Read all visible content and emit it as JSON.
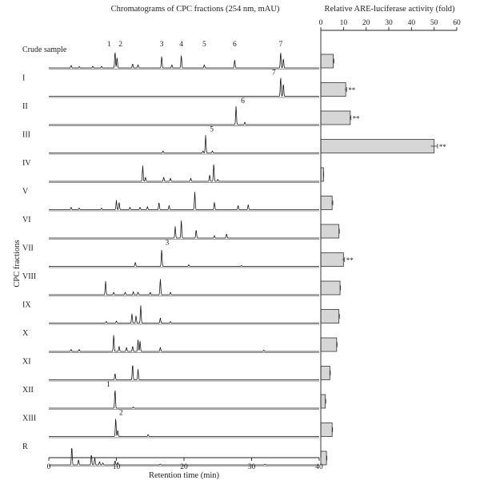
{
  "chart_data": {
    "type": "chromatogram-with-bars",
    "left_title": "Chromatograms of CPC fractions (254 nm, mAU)",
    "right_title": "Relative ARE-luciferase activity (fold)",
    "xlabel": "Retention time (min)",
    "ylabel": "CPC fractions",
    "x_ticks": [
      0,
      10,
      20,
      30,
      40
    ],
    "x_range": [
      0,
      40
    ],
    "bar_ticks": [
      0,
      10,
      20,
      30,
      40,
      50,
      60
    ],
    "bar_range": [
      0,
      60
    ],
    "rows": [
      {
        "label": "Crude sample",
        "fold": 5.5,
        "err": 0.3,
        "sig": "",
        "peaks": [
          [
            3.3,
            0.12
          ],
          [
            4.5,
            0.06
          ],
          [
            6.5,
            0.08
          ],
          [
            7.8,
            0.08
          ],
          [
            9.8,
            0.78
          ],
          [
            10.1,
            0.5
          ],
          [
            12.4,
            0.2
          ],
          [
            13.2,
            0.15
          ],
          [
            16.7,
            0.55
          ],
          [
            18.2,
            0.15
          ],
          [
            19.6,
            0.6
          ],
          [
            23.0,
            0.15
          ],
          [
            27.5,
            0.38
          ],
          [
            34.3,
            0.75
          ],
          [
            34.7,
            0.45
          ]
        ],
        "labels": [
          {
            "t": 8.9,
            "text": "1"
          },
          {
            "t": 10.6,
            "text": "2"
          },
          {
            "t": 16.7,
            "text": "3"
          },
          {
            "t": 19.6,
            "text": "4"
          },
          {
            "t": 23.0,
            "text": "5"
          },
          {
            "t": 27.5,
            "text": "6"
          },
          {
            "t": 34.3,
            "text": "7"
          }
        ]
      },
      {
        "label": "I",
        "fold": 11.0,
        "err": 0.4,
        "sig": "**",
        "peaks": [
          [
            34.3,
            0.92
          ],
          [
            34.7,
            0.6
          ]
        ],
        "labels": [
          {
            "t": 33.3,
            "text": "7"
          }
        ]
      },
      {
        "label": "II",
        "fold": 13.0,
        "err": 0.3,
        "sig": "**",
        "peaks": [
          [
            27.7,
            0.88
          ],
          [
            29.0,
            0.12
          ]
        ],
        "labels": [
          {
            "t": 28.7,
            "text": "6"
          }
        ]
      },
      {
        "label": "III",
        "fold": 50.0,
        "err": 1.5,
        "sig": "**",
        "peaks": [
          [
            16.9,
            0.1
          ],
          [
            22.8,
            0.1
          ],
          [
            23.2,
            0.85
          ],
          [
            24.2,
            0.1
          ]
        ],
        "labels": [
          {
            "t": 24.1,
            "text": "5"
          }
        ]
      },
      {
        "label": "IV",
        "fold": 1.2,
        "err": 0.1,
        "sig": "",
        "peaks": [
          [
            13.9,
            0.75
          ],
          [
            14.3,
            0.2
          ],
          [
            17.0,
            0.2
          ],
          [
            18.0,
            0.15
          ],
          [
            21.0,
            0.15
          ],
          [
            23.8,
            0.3
          ],
          [
            24.4,
            0.85
          ],
          [
            25.0,
            0.1
          ]
        ],
        "labels": []
      },
      {
        "label": "V",
        "fold": 5.0,
        "err": 0.3,
        "sig": "",
        "peaks": [
          [
            3.3,
            0.12
          ],
          [
            4.5,
            0.08
          ],
          [
            7.8,
            0.08
          ],
          [
            10.0,
            0.45
          ],
          [
            10.4,
            0.35
          ],
          [
            12.0,
            0.12
          ],
          [
            13.5,
            0.12
          ],
          [
            14.6,
            0.15
          ],
          [
            16.3,
            0.35
          ],
          [
            17.8,
            0.2
          ],
          [
            21.6,
            0.85
          ],
          [
            24.5,
            0.35
          ],
          [
            28.0,
            0.2
          ],
          [
            29.5,
            0.25
          ]
        ],
        "labels": []
      },
      {
        "label": "VI",
        "fold": 8.0,
        "err": 0.2,
        "sig": "",
        "peaks": [
          [
            18.7,
            0.55
          ],
          [
            19.6,
            0.85
          ],
          [
            21.8,
            0.4
          ],
          [
            24.5,
            0.12
          ],
          [
            26.3,
            0.2
          ]
        ],
        "labels": []
      },
      {
        "label": "VII",
        "fold": 10.0,
        "err": 0.5,
        "sig": "**",
        "peaks": [
          [
            12.8,
            0.2
          ],
          [
            16.7,
            0.8
          ],
          [
            20.7,
            0.08
          ],
          [
            28.5,
            0.05
          ]
        ],
        "labels": [
          {
            "t": 17.5,
            "text": "3"
          }
        ]
      },
      {
        "label": "VIII",
        "fold": 8.5,
        "err": 0.2,
        "sig": "",
        "peaks": [
          [
            8.4,
            0.65
          ],
          [
            9.6,
            0.12
          ],
          [
            11.3,
            0.12
          ],
          [
            12.5,
            0.15
          ],
          [
            13.2,
            0.12
          ],
          [
            15.0,
            0.12
          ],
          [
            16.5,
            0.75
          ],
          [
            18.0,
            0.12
          ]
        ],
        "labels": []
      },
      {
        "label": "IX",
        "fold": 8.0,
        "err": 0.2,
        "sig": "",
        "peaks": [
          [
            8.5,
            0.08
          ],
          [
            10.0,
            0.1
          ],
          [
            12.3,
            0.45
          ],
          [
            12.9,
            0.35
          ],
          [
            13.6,
            0.85
          ],
          [
            16.5,
            0.25
          ],
          [
            18.0,
            0.08
          ]
        ],
        "labels": []
      },
      {
        "label": "X",
        "fold": 7.0,
        "err": 0.2,
        "sig": "",
        "peaks": [
          [
            3.3,
            0.1
          ],
          [
            4.5,
            0.1
          ],
          [
            9.6,
            0.8
          ],
          [
            10.4,
            0.25
          ],
          [
            11.5,
            0.2
          ],
          [
            12.4,
            0.25
          ],
          [
            13.2,
            0.55
          ],
          [
            13.5,
            0.5
          ],
          [
            16.5,
            0.2
          ],
          [
            31.8,
            0.06
          ]
        ],
        "labels": []
      },
      {
        "label": "XI",
        "fold": 4.0,
        "err": 0.2,
        "sig": "",
        "peaks": [
          [
            9.8,
            0.3
          ],
          [
            12.4,
            0.75
          ],
          [
            13.2,
            0.5
          ]
        ],
        "labels": []
      },
      {
        "label": "XII",
        "fold": 2.0,
        "err": 0.2,
        "sig": "",
        "peaks": [
          [
            9.8,
            0.9
          ],
          [
            12.5,
            0.06
          ]
        ],
        "labels": [
          {
            "t": 8.8,
            "text": "1"
          }
        ]
      },
      {
        "label": "XIII",
        "fold": 5.0,
        "err": 0.2,
        "sig": "",
        "peaks": [
          [
            9.9,
            0.88
          ],
          [
            10.2,
            0.3
          ],
          [
            14.7,
            0.1
          ]
        ],
        "labels": [
          {
            "t": 10.7,
            "text": "2"
          }
        ]
      },
      {
        "label": "R",
        "fold": 2.5,
        "err": 0.2,
        "sig": "",
        "peaks": [
          [
            3.4,
            0.88
          ],
          [
            4.4,
            0.25
          ],
          [
            6.3,
            0.5
          ],
          [
            6.8,
            0.35
          ],
          [
            7.5,
            0.15
          ],
          [
            8.0,
            0.1
          ],
          [
            9.8,
            0.2
          ],
          [
            10.2,
            0.12
          ],
          [
            16.5,
            0.04
          ],
          [
            32.0,
            0.03
          ]
        ],
        "labels": []
      }
    ]
  }
}
